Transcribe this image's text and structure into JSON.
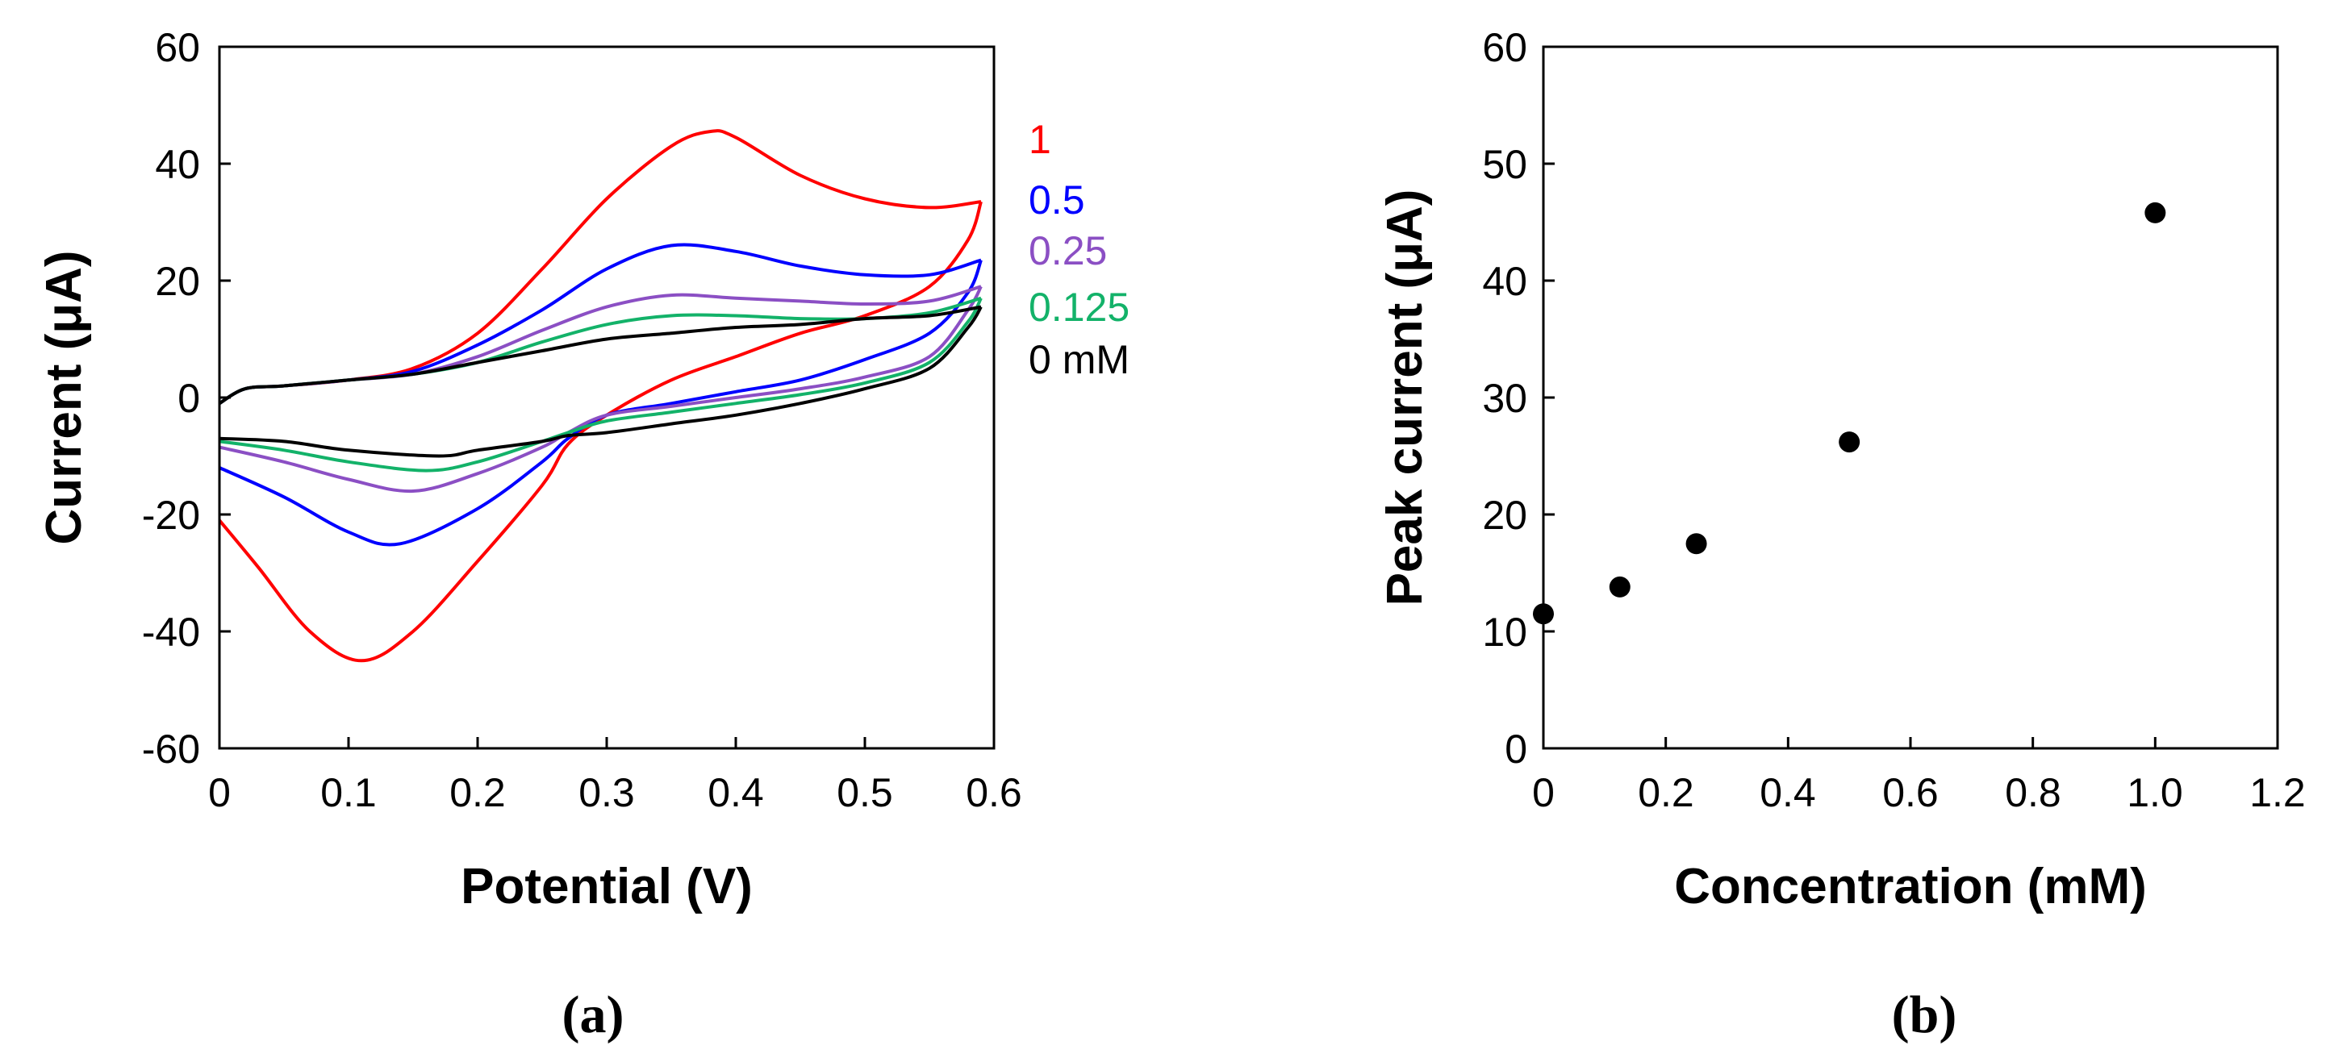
{
  "chart_data": [
    {
      "type": "line",
      "panel_label": "(a)",
      "title": "",
      "xlabel": "Potential (V)",
      "ylabel": "Current (μA)",
      "xlim": [
        0,
        0.6
      ],
      "ylim": [
        -60,
        60
      ],
      "xticks": [
        "0",
        "0.1",
        "0.2",
        "0.3",
        "0.4",
        "0.5",
        "0.6"
      ],
      "yticks": [
        "-60",
        "-40",
        "-20",
        "0",
        "20",
        "40",
        "60"
      ],
      "grid": false,
      "legend_position": "right",
      "series": [
        {
          "name": "1",
          "legend_label": "1",
          "color": "#ff0000",
          "forward": [
            [
              0,
              -1
            ],
            [
              0.02,
              1.5
            ],
            [
              0.05,
              2
            ],
            [
              0.1,
              3
            ],
            [
              0.15,
              5
            ],
            [
              0.2,
              11
            ],
            [
              0.25,
              22
            ],
            [
              0.3,
              34
            ],
            [
              0.35,
              43
            ],
            [
              0.38,
              45.5
            ],
            [
              0.4,
              44.5
            ],
            [
              0.45,
              38
            ],
            [
              0.5,
              34
            ],
            [
              0.55,
              32.5
            ],
            [
              0.59,
              33.5
            ]
          ],
          "reverse": [
            [
              0.59,
              33.5
            ],
            [
              0.58,
              27
            ],
            [
              0.55,
              19
            ],
            [
              0.5,
              14
            ],
            [
              0.45,
              11
            ],
            [
              0.4,
              7
            ],
            [
              0.35,
              3
            ],
            [
              0.3,
              -3
            ],
            [
              0.27,
              -8
            ],
            [
              0.25,
              -15
            ],
            [
              0.2,
              -28
            ],
            [
              0.15,
              -40
            ],
            [
              0.11,
              -45
            ],
            [
              0.07,
              -40
            ],
            [
              0.03,
              -29
            ],
            [
              0,
              -21
            ]
          ]
        },
        {
          "name": "0.5",
          "legend_label": "0.5",
          "color": "#0000ff",
          "forward": [
            [
              0,
              -1
            ],
            [
              0.02,
              1.5
            ],
            [
              0.05,
              2
            ],
            [
              0.1,
              3
            ],
            [
              0.15,
              4.5
            ],
            [
              0.2,
              9
            ],
            [
              0.25,
              15
            ],
            [
              0.3,
              22
            ],
            [
              0.35,
              26
            ],
            [
              0.4,
              25
            ],
            [
              0.45,
              22.5
            ],
            [
              0.5,
              21
            ],
            [
              0.55,
              21
            ],
            [
              0.59,
              23.5
            ]
          ],
          "reverse": [
            [
              0.59,
              23.5
            ],
            [
              0.58,
              18
            ],
            [
              0.55,
              11
            ],
            [
              0.5,
              6.5
            ],
            [
              0.45,
              3
            ],
            [
              0.4,
              1
            ],
            [
              0.35,
              -1
            ],
            [
              0.3,
              -3
            ],
            [
              0.27,
              -7
            ],
            [
              0.25,
              -11
            ],
            [
              0.2,
              -19
            ],
            [
              0.14,
              -25
            ],
            [
              0.1,
              -23
            ],
            [
              0.05,
              -17
            ],
            [
              0,
              -12
            ]
          ]
        },
        {
          "name": "0.25",
          "legend_label": "0.25",
          "color": "#8b4fc4",
          "forward": [
            [
              0,
              -1
            ],
            [
              0.02,
              1.5
            ],
            [
              0.05,
              2
            ],
            [
              0.1,
              3
            ],
            [
              0.15,
              4
            ],
            [
              0.2,
              7
            ],
            [
              0.25,
              11.5
            ],
            [
              0.3,
              15.5
            ],
            [
              0.35,
              17.5
            ],
            [
              0.4,
              17
            ],
            [
              0.45,
              16.5
            ],
            [
              0.5,
              16
            ],
            [
              0.55,
              16.5
            ],
            [
              0.59,
              19
            ]
          ],
          "reverse": [
            [
              0.59,
              19
            ],
            [
              0.58,
              15
            ],
            [
              0.55,
              7
            ],
            [
              0.5,
              3.5
            ],
            [
              0.45,
              1.5
            ],
            [
              0.4,
              0
            ],
            [
              0.35,
              -1.5
            ],
            [
              0.3,
              -3
            ],
            [
              0.27,
              -6
            ],
            [
              0.25,
              -8.5
            ],
            [
              0.2,
              -13
            ],
            [
              0.15,
              -16
            ],
            [
              0.1,
              -14
            ],
            [
              0.05,
              -11
            ],
            [
              0,
              -8.5
            ]
          ]
        },
        {
          "name": "0.125",
          "legend_label": "0.125",
          "color": "#13b269",
          "forward": [
            [
              0,
              -1
            ],
            [
              0.02,
              1.5
            ],
            [
              0.05,
              2
            ],
            [
              0.1,
              3
            ],
            [
              0.15,
              4
            ],
            [
              0.2,
              6
            ],
            [
              0.25,
              9.5
            ],
            [
              0.3,
              12.5
            ],
            [
              0.35,
              14
            ],
            [
              0.4,
              14
            ],
            [
              0.45,
              13.5
            ],
            [
              0.5,
              13.5
            ],
            [
              0.55,
              14.5
            ],
            [
              0.59,
              17
            ]
          ],
          "reverse": [
            [
              0.59,
              17
            ],
            [
              0.58,
              13
            ],
            [
              0.55,
              6
            ],
            [
              0.5,
              2.5
            ],
            [
              0.45,
              0.5
            ],
            [
              0.4,
              -1
            ],
            [
              0.35,
              -2.5
            ],
            [
              0.3,
              -4
            ],
            [
              0.27,
              -6
            ],
            [
              0.25,
              -7.5
            ],
            [
              0.2,
              -11
            ],
            [
              0.16,
              -12.5
            ],
            [
              0.1,
              -11
            ],
            [
              0.05,
              -9
            ],
            [
              0,
              -7.5
            ]
          ]
        },
        {
          "name": "0 mM",
          "legend_label": "0 mM",
          "color": "#000000",
          "forward": [
            [
              0,
              -1
            ],
            [
              0.02,
              1.5
            ],
            [
              0.05,
              2
            ],
            [
              0.1,
              3
            ],
            [
              0.15,
              4
            ],
            [
              0.2,
              6
            ],
            [
              0.25,
              8
            ],
            [
              0.3,
              10
            ],
            [
              0.35,
              11
            ],
            [
              0.4,
              12
            ],
            [
              0.45,
              12.5
            ],
            [
              0.5,
              13.5
            ],
            [
              0.55,
              14
            ],
            [
              0.59,
              15.5
            ]
          ],
          "reverse": [
            [
              0.59,
              15.5
            ],
            [
              0.58,
              12
            ],
            [
              0.55,
              5
            ],
            [
              0.5,
              1.5
            ],
            [
              0.45,
              -1
            ],
            [
              0.4,
              -3
            ],
            [
              0.35,
              -4.5
            ],
            [
              0.3,
              -6
            ],
            [
              0.27,
              -6.5
            ],
            [
              0.25,
              -7.5
            ],
            [
              0.2,
              -9
            ],
            [
              0.17,
              -10
            ],
            [
              0.1,
              -9
            ],
            [
              0.05,
              -7.5
            ],
            [
              0,
              -7
            ]
          ]
        }
      ]
    },
    {
      "type": "scatter",
      "panel_label": "(b)",
      "title": "",
      "xlabel": "Concentration (mM)",
      "ylabel": "Peak current (μA)",
      "xlim": [
        0,
        1.2
      ],
      "ylim": [
        0,
        60
      ],
      "xticks": [
        "0",
        "0.2",
        "0.4",
        "0.6",
        "0.8",
        "1.0",
        "1.2"
      ],
      "yticks": [
        "0",
        "10",
        "20",
        "30",
        "40",
        "50",
        "60"
      ],
      "grid": false,
      "color": "#000000",
      "x": [
        0,
        0.125,
        0.25,
        0.5,
        1.0
      ],
      "y": [
        11.5,
        13.8,
        17.5,
        26.2,
        45.8
      ]
    }
  ]
}
